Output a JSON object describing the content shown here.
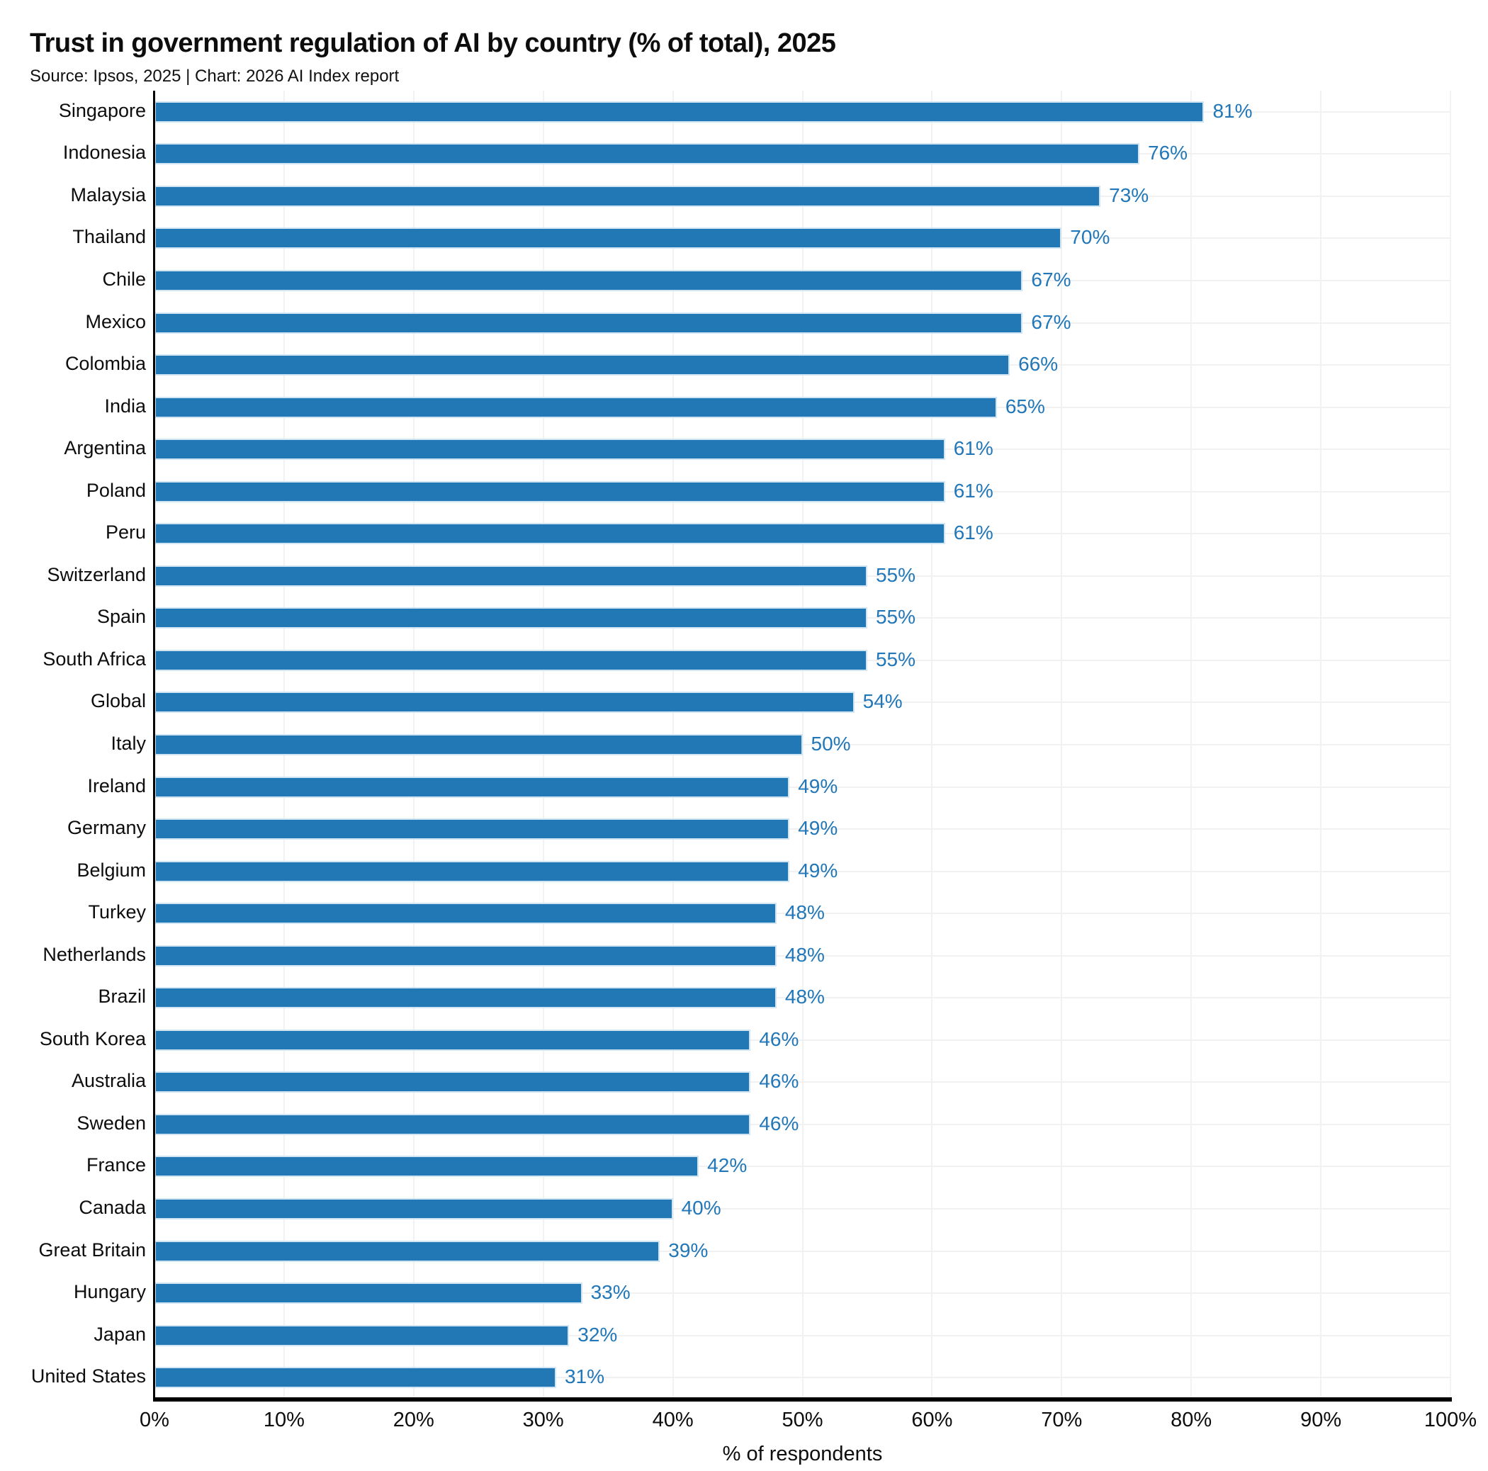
{
  "header": {
    "title": "Trust in government regulation of AI by country (% of total), 2025",
    "subtitle": "Source: Ipsos, 2025 | Chart: 2026 AI Index report"
  },
  "chart_data": {
    "type": "bar",
    "orientation": "horizontal",
    "title": "Trust in government regulation of AI by country (% of total), 2025",
    "source_note": "Source: Ipsos, 2025 | Chart: 2026 AI Index report",
    "categories": [
      "Singapore",
      "Indonesia",
      "Malaysia",
      "Thailand",
      "Chile",
      "Mexico",
      "Colombia",
      "India",
      "Argentina",
      "Poland",
      "Peru",
      "Switzerland",
      "Spain",
      "South Africa",
      "Global",
      "Italy",
      "Ireland",
      "Germany",
      "Belgium",
      "Turkey",
      "Netherlands",
      "Brazil",
      "South Korea",
      "Australia",
      "Sweden",
      "France",
      "Canada",
      "Great Britain",
      "Hungary",
      "Japan",
      "United States"
    ],
    "values": [
      81,
      76,
      73,
      70,
      67,
      67,
      66,
      65,
      61,
      61,
      61,
      55,
      55,
      55,
      54,
      50,
      49,
      49,
      49,
      48,
      48,
      48,
      46,
      46,
      46,
      42,
      40,
      39,
      33,
      32,
      31
    ],
    "value_suffix": "%",
    "xlabel": "% of respondents",
    "ylabel": "",
    "x_tick_labels": [
      "0%",
      "10%",
      "20%",
      "30%",
      "40%",
      "50%",
      "60%",
      "70%",
      "80%",
      "90%",
      "100%"
    ],
    "xlim": [
      0,
      100
    ],
    "grid": true,
    "legend_position": "none",
    "colors": {
      "bar_fill": "#2278b5",
      "bar_edge": "#cfe5f3",
      "value_label": "#2177b8",
      "gridline": "#f1f1f1",
      "axis": "#000000",
      "text": "#0d0d0d"
    }
  }
}
